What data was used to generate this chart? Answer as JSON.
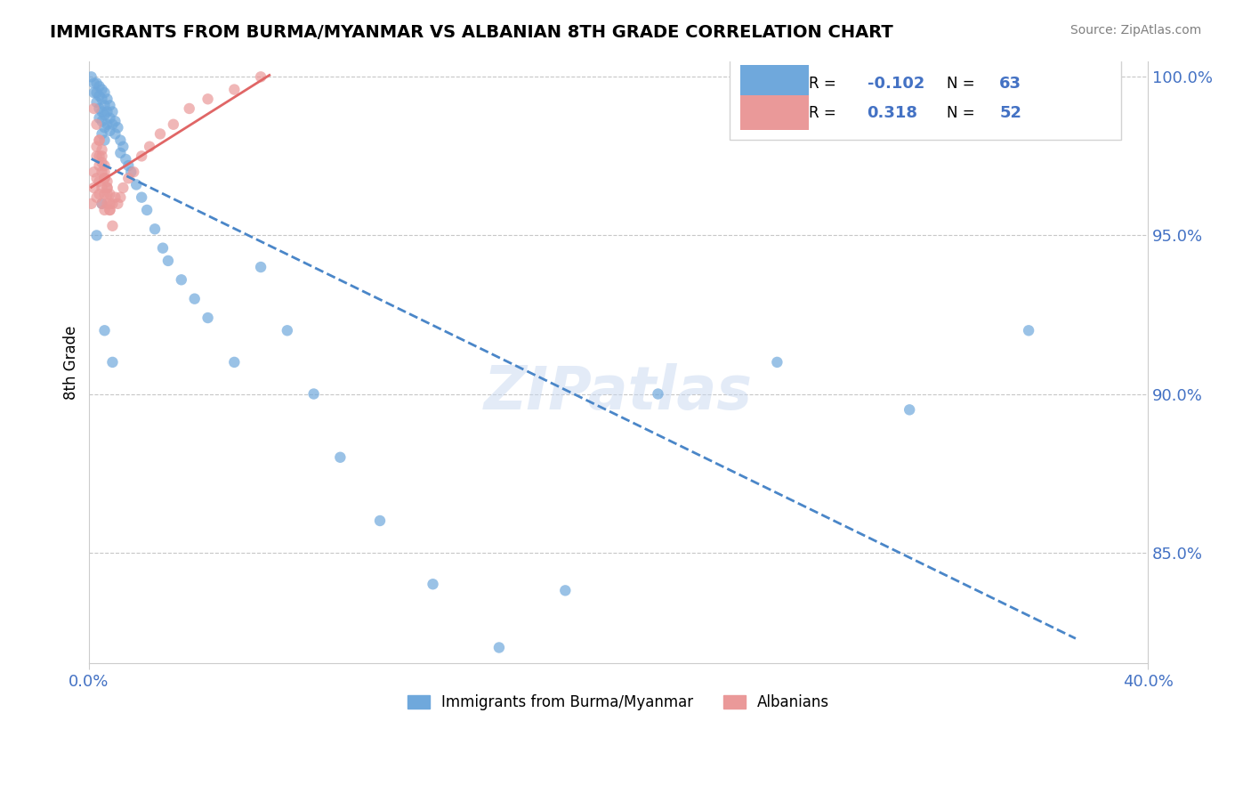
{
  "title": "IMMIGRANTS FROM BURMA/MYANMAR VS ALBANIAN 8TH GRADE CORRELATION CHART",
  "source": "Source: ZipAtlas.com",
  "xlabel_blue": "Immigrants from Burma/Myanmar",
  "xlabel_pink": "Albanians",
  "ylabel": "8th Grade",
  "xlim": [
    0.0,
    0.4
  ],
  "ylim": [
    0.815,
    1.005
  ],
  "yticks": [
    0.85,
    0.9,
    0.95,
    1.0
  ],
  "xticks": [
    0.0,
    0.4
  ],
  "r_blue": -0.102,
  "n_blue": 63,
  "r_pink": 0.318,
  "n_pink": 52,
  "blue_color": "#6fa8dc",
  "pink_color": "#ea9999",
  "blue_line_color": "#4a86c8",
  "pink_line_color": "#e06666",
  "watermark": "ZIPatlas",
  "blue_scatter_x": [
    0.001,
    0.002,
    0.002,
    0.003,
    0.003,
    0.003,
    0.004,
    0.004,
    0.004,
    0.004,
    0.005,
    0.005,
    0.005,
    0.005,
    0.005,
    0.006,
    0.006,
    0.006,
    0.006,
    0.006,
    0.007,
    0.007,
    0.007,
    0.008,
    0.008,
    0.008,
    0.009,
    0.009,
    0.01,
    0.01,
    0.011,
    0.012,
    0.012,
    0.013,
    0.014,
    0.015,
    0.016,
    0.018,
    0.02,
    0.022,
    0.025,
    0.028,
    0.03,
    0.035,
    0.04,
    0.045,
    0.055,
    0.065,
    0.075,
    0.085,
    0.095,
    0.11,
    0.13,
    0.155,
    0.18,
    0.215,
    0.26,
    0.31,
    0.355,
    0.005,
    0.003,
    0.006,
    0.009
  ],
  "blue_scatter_y": [
    1.0,
    0.998,
    0.995,
    0.998,
    0.995,
    0.992,
    0.997,
    0.994,
    0.99,
    0.987,
    0.996,
    0.993,
    0.989,
    0.986,
    0.982,
    0.995,
    0.991,
    0.988,
    0.984,
    0.98,
    0.993,
    0.989,
    0.985,
    0.991,
    0.987,
    0.983,
    0.989,
    0.985,
    0.986,
    0.982,
    0.984,
    0.98,
    0.976,
    0.978,
    0.974,
    0.972,
    0.97,
    0.966,
    0.962,
    0.958,
    0.952,
    0.946,
    0.942,
    0.936,
    0.93,
    0.924,
    0.91,
    0.94,
    0.92,
    0.9,
    0.88,
    0.86,
    0.84,
    0.82,
    0.838,
    0.9,
    0.91,
    0.895,
    0.92,
    0.96,
    0.95,
    0.92,
    0.91
  ],
  "pink_scatter_x": [
    0.001,
    0.002,
    0.002,
    0.003,
    0.003,
    0.003,
    0.004,
    0.004,
    0.004,
    0.005,
    0.005,
    0.005,
    0.006,
    0.006,
    0.006,
    0.007,
    0.007,
    0.008,
    0.008,
    0.009,
    0.01,
    0.011,
    0.012,
    0.013,
    0.015,
    0.017,
    0.02,
    0.023,
    0.027,
    0.032,
    0.038,
    0.045,
    0.055,
    0.065,
    0.002,
    0.003,
    0.004,
    0.005,
    0.006,
    0.007,
    0.008,
    0.003,
    0.004,
    0.005,
    0.006,
    0.007,
    0.008,
    0.009,
    0.004,
    0.005,
    0.006,
    0.007
  ],
  "pink_scatter_y": [
    0.96,
    0.965,
    0.97,
    0.975,
    0.968,
    0.962,
    0.972,
    0.967,
    0.963,
    0.97,
    0.965,
    0.96,
    0.968,
    0.963,
    0.958,
    0.965,
    0.96,
    0.963,
    0.958,
    0.96,
    0.962,
    0.96,
    0.962,
    0.965,
    0.968,
    0.97,
    0.975,
    0.978,
    0.982,
    0.985,
    0.99,
    0.993,
    0.996,
    1.0,
    0.99,
    0.985,
    0.98,
    0.975,
    0.97,
    0.965,
    0.96,
    0.978,
    0.975,
    0.973,
    0.968,
    0.963,
    0.958,
    0.953,
    0.98,
    0.977,
    0.972,
    0.967
  ]
}
